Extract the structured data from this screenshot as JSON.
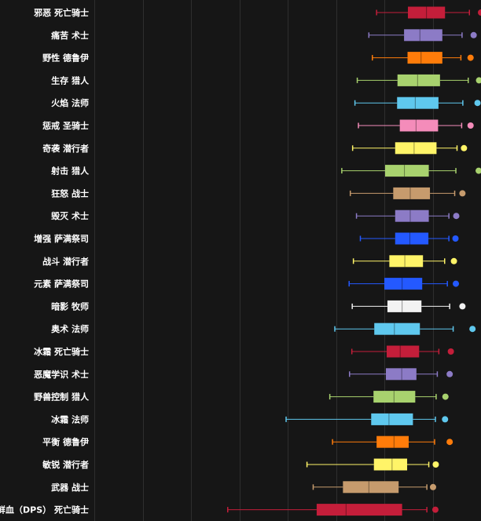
{
  "chart_data": {
    "type": "box",
    "title": "",
    "xlabel": "",
    "ylabel": "",
    "grid": true,
    "legend": "none",
    "x_range": [
      0,
      100
    ],
    "categories": [
      {
        "label": "邪恶 死亡骑士",
        "color": "#C41E3A",
        "whisker_low": 73.0,
        "q1": 81.1,
        "median": 85.9,
        "q3": 90.7,
        "whisker_high": 97.0,
        "outlier": 100.0
      },
      {
        "label": "痛苦 术士",
        "color": "#8C7BC6",
        "whisker_low": 71.0,
        "q1": 80.1,
        "median": 84.2,
        "q3": 90.0,
        "whisker_high": 95.1,
        "outlier": 98.1
      },
      {
        "label": "野性 德鲁伊",
        "color": "#FF7C0A",
        "whisker_low": 71.9,
        "q1": 81.0,
        "median": 84.5,
        "q3": 90.0,
        "whisker_high": 94.8,
        "outlier": 97.3
      },
      {
        "label": "生存 猎人",
        "color": "#A8D26E",
        "whisker_low": 68.0,
        "q1": 78.4,
        "median": 83.6,
        "q3": 89.4,
        "whisker_high": 96.7,
        "outlier": 99.5
      },
      {
        "label": "火焰 法师",
        "color": "#5FC8EE",
        "whisker_low": 67.4,
        "q1": 78.3,
        "median": 83.0,
        "q3": 89.0,
        "whisker_high": 95.3,
        "outlier": 99.1
      },
      {
        "label": "惩戒 圣骑士",
        "color": "#F48CBA",
        "whisker_low": 68.3,
        "q1": 79.0,
        "median": 83.2,
        "q3": 88.9,
        "whisker_high": 95.0,
        "outlier": 97.3
      },
      {
        "label": "奇袭 潜行者",
        "color": "#FFF468",
        "whisker_low": 66.8,
        "q1": 77.8,
        "median": 82.7,
        "q3": 88.5,
        "whisker_high": 93.8,
        "outlier": 95.6
      },
      {
        "label": "射击 猎人",
        "color": "#A8D26E",
        "whisker_low": 64.0,
        "q1": 75.2,
        "median": 80.2,
        "q3": 86.5,
        "whisker_high": 93.5,
        "outlier": 99.4
      },
      {
        "label": "狂怒 战士",
        "color": "#C69B6D",
        "whisker_low": 66.2,
        "q1": 77.3,
        "median": 81.7,
        "q3": 86.8,
        "whisker_high": 93.2,
        "outlier": 95.2
      },
      {
        "label": "毁灭 术士",
        "color": "#8C7BC6",
        "whisker_low": 67.8,
        "q1": 77.8,
        "median": 81.7,
        "q3": 86.5,
        "whisker_high": 91.7,
        "outlier": 93.6
      },
      {
        "label": "增强 萨满祭司",
        "color": "#2459FF",
        "whisker_low": 68.8,
        "q1": 77.8,
        "median": 81.6,
        "q3": 86.4,
        "whisker_high": 91.7,
        "outlier": 93.4
      },
      {
        "label": "战斗 潜行者",
        "color": "#FFF468",
        "whisker_low": 67.0,
        "q1": 76.3,
        "median": 80.3,
        "q3": 85.0,
        "whisker_high": 90.6,
        "outlier": 93.0
      },
      {
        "label": "元素 萨满祭司",
        "color": "#2459FF",
        "whisker_low": 65.9,
        "q1": 75.0,
        "median": 79.6,
        "q3": 84.8,
        "whisker_high": 91.3,
        "outlier": 93.5
      },
      {
        "label": "暗影 牧师",
        "color": "#F2F2F2",
        "whisker_low": 66.7,
        "q1": 75.8,
        "median": 79.6,
        "q3": 84.6,
        "whisker_high": 91.9,
        "outlier": 95.2
      },
      {
        "label": "奥术 法师",
        "color": "#5FC8EE",
        "whisker_low": 62.2,
        "q1": 72.4,
        "median": 77.6,
        "q3": 84.2,
        "whisker_high": 92.8,
        "outlier": 97.8
      },
      {
        "label": "冰霜 死亡骑士",
        "color": "#C41E3A",
        "whisker_low": 66.6,
        "q1": 75.6,
        "median": 79.1,
        "q3": 84.0,
        "whisker_high": 89.1,
        "outlier": 92.2
      },
      {
        "label": "恶魔学识 术士",
        "color": "#8C7BC6",
        "whisker_low": 66.0,
        "q1": 75.4,
        "median": 79.5,
        "q3": 83.3,
        "whisker_high": 88.7,
        "outlier": 91.9
      },
      {
        "label": "野兽控制 猎人",
        "color": "#A8D26E",
        "whisker_low": 60.9,
        "q1": 72.2,
        "median": 77.5,
        "q3": 83.0,
        "whisker_high": 88.4,
        "outlier": 90.8
      },
      {
        "label": "冰霜 法师",
        "color": "#5FC8EE",
        "whisker_low": 49.6,
        "q1": 71.6,
        "median": 76.2,
        "q3": 82.4,
        "whisker_high": 88.2,
        "outlier": 90.7
      },
      {
        "label": "平衡 德鲁伊",
        "color": "#FF7C0A",
        "whisker_low": 61.6,
        "q1": 73.0,
        "median": 77.5,
        "q3": 81.3,
        "whisker_high": 88.0,
        "outlier": 91.9
      },
      {
        "label": "敏锐 潜行者",
        "color": "#FFF468",
        "whisker_low": 55.0,
        "q1": 72.3,
        "median": 77.0,
        "q3": 80.9,
        "whisker_high": 86.5,
        "outlier": 88.3
      },
      {
        "label": "武器 战士",
        "color": "#C69B6D",
        "whisker_low": 56.6,
        "q1": 64.3,
        "median": 71.0,
        "q3": 78.7,
        "whisker_high": 86.0,
        "outlier": 87.6
      },
      {
        "label": "鲜血（DPS） 死亡骑士",
        "color": "#C41E3A",
        "whisker_low": 34.5,
        "q1": 57.5,
        "median": 65.1,
        "q3": 79.6,
        "whisker_high": 86.0,
        "outlier": 88.2
      }
    ]
  }
}
